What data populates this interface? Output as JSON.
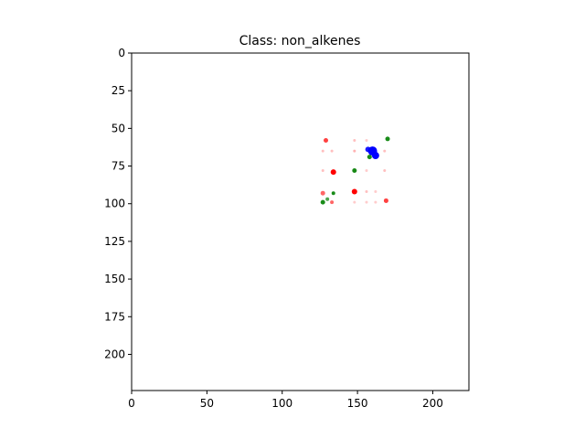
{
  "chart_data": {
    "type": "scatter",
    "title": "Class: non_alkenes",
    "xlabel": "",
    "ylabel": "",
    "xlim": [
      0,
      224
    ],
    "ylim": [
      224,
      0
    ],
    "x_ticks": [
      0,
      50,
      100,
      150,
      200
    ],
    "y_ticks": [
      0,
      25,
      50,
      75,
      100,
      125,
      150,
      175,
      200
    ],
    "grid": false,
    "series": [
      {
        "color": "#ff0000",
        "points": [
          {
            "x": 129,
            "y": 58,
            "r": 2.5,
            "opacity": 0.75
          },
          {
            "x": 134,
            "y": 79,
            "r": 3,
            "opacity": 1
          },
          {
            "x": 148,
            "y": 92,
            "r": 3,
            "opacity": 1
          },
          {
            "x": 127,
            "y": 93,
            "r": 2.5,
            "opacity": 0.6
          },
          {
            "x": 133,
            "y": 99,
            "r": 2,
            "opacity": 0.6
          },
          {
            "x": 169,
            "y": 98,
            "r": 2.5,
            "opacity": 0.75
          },
          {
            "x": 127,
            "y": 65,
            "r": 1.5,
            "opacity": 0.25
          },
          {
            "x": 133,
            "y": 65,
            "r": 1.5,
            "opacity": 0.25
          },
          {
            "x": 148,
            "y": 58,
            "r": 1.5,
            "opacity": 0.25
          },
          {
            "x": 148,
            "y": 65,
            "r": 1.5,
            "opacity": 0.3
          },
          {
            "x": 127,
            "y": 78,
            "r": 1.5,
            "opacity": 0.25
          },
          {
            "x": 148,
            "y": 78,
            "r": 1.5,
            "opacity": 0.25
          },
          {
            "x": 156,
            "y": 58,
            "r": 1.5,
            "opacity": 0.2
          },
          {
            "x": 156,
            "y": 78,
            "r": 1.5,
            "opacity": 0.2
          },
          {
            "x": 168,
            "y": 65,
            "r": 1.5,
            "opacity": 0.25
          },
          {
            "x": 168,
            "y": 78,
            "r": 1.5,
            "opacity": 0.25
          },
          {
            "x": 156,
            "y": 92,
            "r": 1.5,
            "opacity": 0.25
          },
          {
            "x": 162,
            "y": 92,
            "r": 1.5,
            "opacity": 0.2
          },
          {
            "x": 156,
            "y": 99,
            "r": 1.5,
            "opacity": 0.2
          },
          {
            "x": 162,
            "y": 99,
            "r": 1.5,
            "opacity": 0.2
          },
          {
            "x": 148,
            "y": 99,
            "r": 1.5,
            "opacity": 0.2
          }
        ]
      },
      {
        "color": "#008000",
        "points": [
          {
            "x": 170,
            "y": 57,
            "r": 2.5,
            "opacity": 0.9
          },
          {
            "x": 158,
            "y": 69,
            "r": 2.5,
            "opacity": 0.9
          },
          {
            "x": 148,
            "y": 78,
            "r": 2.5,
            "opacity": 0.9
          },
          {
            "x": 134,
            "y": 93,
            "r": 2,
            "opacity": 0.9
          },
          {
            "x": 127,
            "y": 99,
            "r": 2.5,
            "opacity": 0.9
          },
          {
            "x": 130,
            "y": 97,
            "r": 2,
            "opacity": 0.7
          }
        ]
      },
      {
        "color": "#0000ff",
        "points": [
          {
            "x": 160,
            "y": 65,
            "r": 5,
            "opacity": 1
          },
          {
            "x": 162,
            "y": 68,
            "r": 4,
            "opacity": 1
          },
          {
            "x": 157,
            "y": 64,
            "r": 3,
            "opacity": 0.9
          }
        ]
      }
    ]
  }
}
